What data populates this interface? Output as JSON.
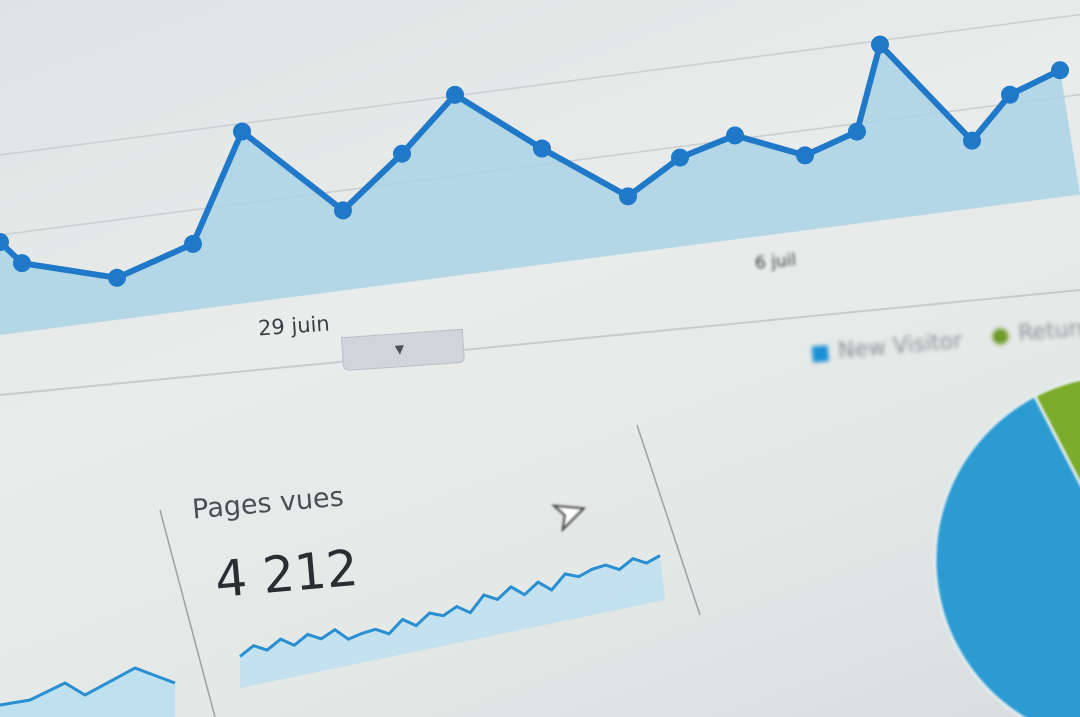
{
  "chart_data": [
    {
      "type": "area",
      "x_tick_labels": [
        "29 juin",
        "6 juil"
      ],
      "values": [
        93,
        69,
        42,
        66,
        172,
        80,
        129,
        181,
        116,
        57,
        89,
        104,
        75,
        92,
        176,
        68,
        109,
        127
      ],
      "color": "#1f78c8",
      "fill": "#a9d3e6",
      "grid": true
    },
    {
      "type": "area",
      "title": "Pages vues",
      "total": "4 212",
      "values": [
        10,
        22,
        16,
        28,
        20,
        32,
        26,
        36,
        24,
        30,
        34,
        28,
        44,
        36,
        50,
        46,
        56,
        48,
        68,
        62,
        76,
        66,
        80,
        70,
        88,
        84,
        92,
        96,
        90,
        102,
        96,
        104
      ],
      "color": "#2a8fd0",
      "fill": "#bfe0ee"
    },
    {
      "type": "pie",
      "legend": [
        "New Visitor",
        "Returning Visitor"
      ],
      "legend_placement": "top-right",
      "slices": [
        {
          "name": "New Visitor",
          "value": 79,
          "color": "#2b9bd2"
        },
        {
          "name": "Returning Visitor",
          "value": 15,
          "color": "#7aab2a"
        },
        {
          "name": "",
          "value": 6,
          "color": "#2f7fb3"
        }
      ]
    }
  ],
  "main_chart": {
    "xlabel_1": "29 juin",
    "xlabel_2": "6 juil",
    "toggle_icon": "caret-down-icon"
  },
  "pages": {
    "label": "Pages vues",
    "value": "4 212"
  },
  "legend": {
    "item1": "New Visitor",
    "item2": "Returning Visitor",
    "color1": "#1a8fd4",
    "color2": "#6e9a2a"
  }
}
